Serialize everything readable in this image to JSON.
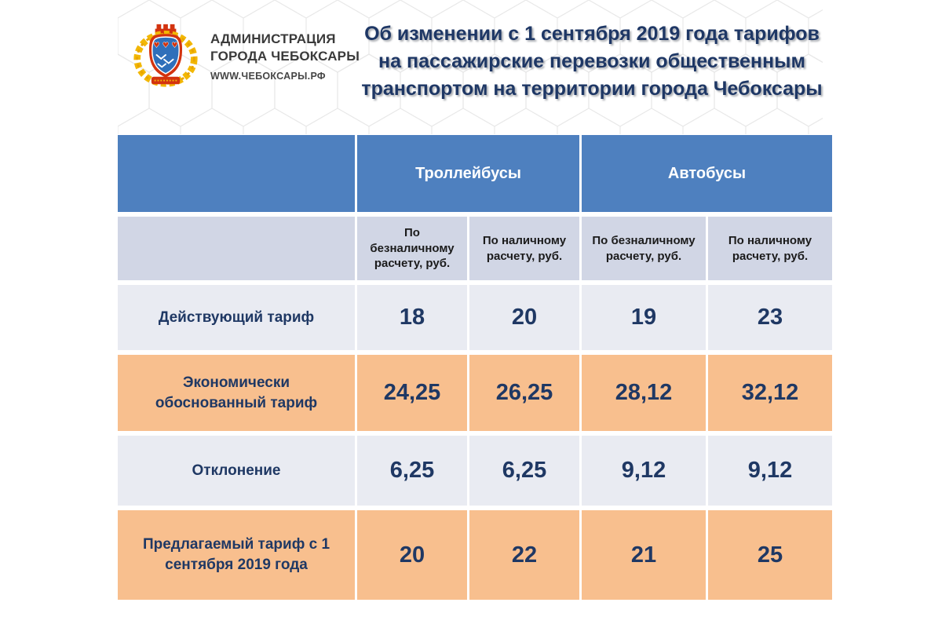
{
  "logo": {
    "org_line1": "АДМИНИСТРАЦИЯ",
    "org_line2": "ГОРОДА ЧЕБОКСАРЫ",
    "website": "WWW.ЧЕБОКСАРЫ.РФ"
  },
  "title": "Об изменении с 1 сентября 2019 года тарифов на пассажирские перевозки общественным транспортом на территории города Чебоксары",
  "colors": {
    "header_blue": "#4e80bf",
    "subheader_bg": "#d1d6e5",
    "row_light_bg": "#e9ebf2",
    "row_highlight_orange": "#f8bf8e",
    "text_navy": "#1f3864",
    "title_navy": "#1e3765",
    "arms_red": "#d3330f",
    "arms_gold": "#f2b705",
    "arms_blue": "#2f6fba"
  },
  "table": {
    "groups": [
      "Троллейбусы",
      "Автобусы"
    ],
    "subheaders": [
      "По безналичному расчету, руб.",
      "По наличному расчету, руб.",
      "По безналичному расчету, руб.",
      "По наличному расчету, руб."
    ],
    "rows": [
      {
        "label": "Действующий тариф",
        "values": [
          "18",
          "20",
          "19",
          "23"
        ],
        "highlight": false
      },
      {
        "label": "Экономически обоснованный тариф",
        "values": [
          "24,25",
          "26,25",
          "28,12",
          "32,12"
        ],
        "highlight": true
      },
      {
        "label": "Отклонение",
        "values": [
          "6,25",
          "6,25",
          "9,12",
          "9,12"
        ],
        "highlight": false
      },
      {
        "label": "Предлагаемый тариф с 1 сентября 2019 года",
        "values": [
          "20",
          "22",
          "21",
          "25"
        ],
        "highlight": true
      }
    ]
  }
}
